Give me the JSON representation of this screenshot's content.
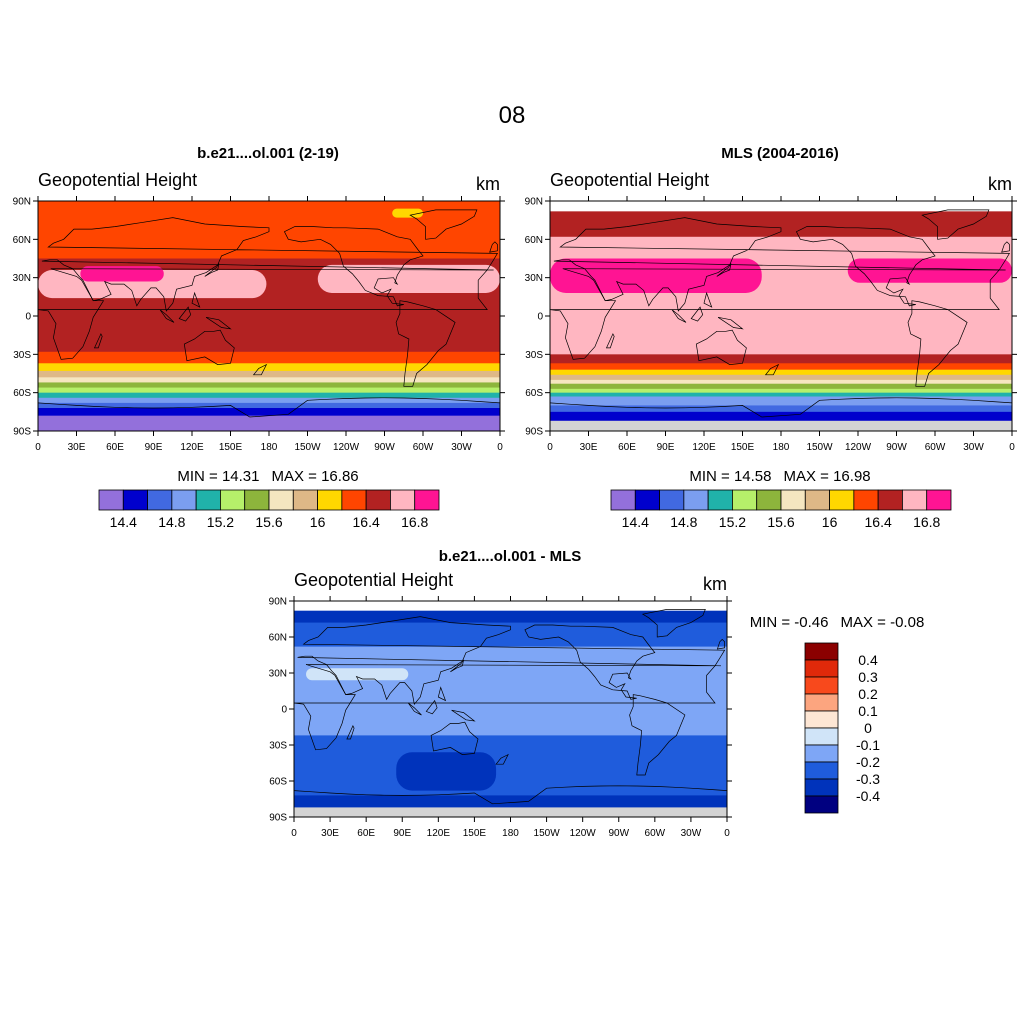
{
  "page_title": "08",
  "chart_data": [
    {
      "type": "heatmap",
      "panel": "model",
      "title": "b.e21....ol.001 (2-19)",
      "left_title": "Geopotential Height",
      "units": "km",
      "x_ticks": [
        "0",
        "30E",
        "60E",
        "90E",
        "120E",
        "150E",
        "180",
        "150W",
        "120W",
        "90W",
        "60W",
        "30W",
        "0"
      ],
      "y_ticks": [
        "90N",
        "60N",
        "30N",
        "0",
        "30S",
        "60S",
        "90S"
      ],
      "min_label": "MIN = ",
      "min_value": "14.31",
      "max_label": "MAX = ",
      "max_value": "16.86",
      "levels": [
        14.4,
        14.6,
        14.8,
        15.0,
        15.2,
        15.4,
        15.6,
        15.8,
        16.0,
        16.2,
        16.4,
        16.6,
        16.8
      ],
      "colorbar_labels": [
        "14.4",
        "14.8",
        "15.2",
        "15.6",
        "16",
        "16.4",
        "16.8"
      ],
      "palette": [
        "#9370db",
        "#0000cd",
        "#4169e1",
        "#7b9ef0",
        "#20b2aa",
        "#b6f06a",
        "#8db53c",
        "#f5e6c0",
        "#deb887",
        "#ffd700",
        "#ff4500",
        "#b22222",
        "#ffb6c1",
        "#ff1493"
      ],
      "bands": [
        {
          "lat_from": 90,
          "lat_to": 45,
          "color_index": 10
        },
        {
          "lat_from": 45,
          "lat_to": 14,
          "color_index": 11
        },
        {
          "lat_from": 14,
          "lat_to": -28,
          "color_index": 11
        },
        {
          "lat_from": -28,
          "lat_to": -37,
          "color_index": 10
        },
        {
          "lat_from": -37,
          "lat_to": -43,
          "color_index": 9
        },
        {
          "lat_from": -43,
          "lat_to": -48,
          "color_index": 8
        },
        {
          "lat_from": -48,
          "lat_to": -52,
          "color_index": 7
        },
        {
          "lat_from": -52,
          "lat_to": -56,
          "color_index": 6
        },
        {
          "lat_from": -56,
          "lat_to": -60,
          "color_index": 5
        },
        {
          "lat_from": -60,
          "lat_to": -64,
          "color_index": 4
        },
        {
          "lat_from": -64,
          "lat_to": -68,
          "color_index": 3
        },
        {
          "lat_from": -68,
          "lat_to": -72,
          "color_index": 2
        },
        {
          "lat_from": -72,
          "lat_to": -78,
          "color_index": 1
        },
        {
          "lat_from": -78,
          "lat_to": -90,
          "color_index": 0
        }
      ],
      "blobs": [
        {
          "lon_from": 0,
          "lon_to": 178,
          "lat_from": 36,
          "lat_to": 14,
          "color_index": 12
        },
        {
          "lon_from": 218,
          "lon_to": 360,
          "lat_from": 40,
          "lat_to": 18,
          "color_index": 12
        },
        {
          "lon_from": 33,
          "lon_to": 98,
          "lat_from": 39,
          "lat_to": 27,
          "color_index": 13
        },
        {
          "lon_from": 276,
          "lon_to": 300,
          "lat_from": 84,
          "lat_to": 77,
          "color_index": 9
        }
      ]
    },
    {
      "type": "heatmap",
      "panel": "observations",
      "title": "MLS (2004-2016)",
      "left_title": "Geopotential Height",
      "units": "km",
      "x_ticks": [
        "0",
        "30E",
        "60E",
        "90E",
        "120E",
        "150E",
        "180",
        "150W",
        "120W",
        "90W",
        "60W",
        "30W",
        "0"
      ],
      "y_ticks": [
        "90N",
        "60N",
        "30N",
        "0",
        "30S",
        "60S",
        "90S"
      ],
      "min_label": "MIN = ",
      "min_value": "14.58",
      "max_label": "MAX = ",
      "max_value": "16.98",
      "levels": [
        14.4,
        14.6,
        14.8,
        15.0,
        15.2,
        15.4,
        15.6,
        15.8,
        16.0,
        16.2,
        16.4,
        16.6,
        16.8
      ],
      "colorbar_labels": [
        "14.4",
        "14.8",
        "15.2",
        "15.6",
        "16",
        "16.4",
        "16.8"
      ],
      "palette": [
        "#9370db",
        "#0000cd",
        "#4169e1",
        "#7b9ef0",
        "#20b2aa",
        "#b6f06a",
        "#8db53c",
        "#f5e6c0",
        "#deb887",
        "#ffd700",
        "#ff4500",
        "#b22222",
        "#ffb6c1",
        "#ff1493"
      ],
      "missing_north_lat": 82,
      "missing_south_lat": -82,
      "bands": [
        {
          "lat_from": 82,
          "lat_to": 62,
          "color_index": 11
        },
        {
          "lat_from": 62,
          "lat_to": -30,
          "color_index": 12
        },
        {
          "lat_from": -30,
          "lat_to": -37,
          "color_index": 11
        },
        {
          "lat_from": -37,
          "lat_to": -42,
          "color_index": 10
        },
        {
          "lat_from": -42,
          "lat_to": -46,
          "color_index": 9
        },
        {
          "lat_from": -46,
          "lat_to": -50,
          "color_index": 8
        },
        {
          "lat_from": -50,
          "lat_to": -53,
          "color_index": 7
        },
        {
          "lat_from": -53,
          "lat_to": -57,
          "color_index": 6
        },
        {
          "lat_from": -57,
          "lat_to": -60,
          "color_index": 5
        },
        {
          "lat_from": -60,
          "lat_to": -63,
          "color_index": 4
        },
        {
          "lat_from": -63,
          "lat_to": -70,
          "color_index": 3
        },
        {
          "lat_from": -70,
          "lat_to": -75,
          "color_index": 2
        },
        {
          "lat_from": -75,
          "lat_to": -82,
          "color_index": 1
        }
      ],
      "blobs": [
        {
          "lon_from": 0,
          "lon_to": 165,
          "lat_from": 45,
          "lat_to": 18,
          "color_index": 13
        },
        {
          "lon_from": 232,
          "lon_to": 360,
          "lat_from": 45,
          "lat_to": 26,
          "color_index": 13
        }
      ]
    },
    {
      "type": "heatmap",
      "panel": "difference",
      "title": "b.e21....ol.001 - MLS",
      "left_title": "Geopotential Height",
      "units": "km",
      "x_ticks": [
        "0",
        "30E",
        "60E",
        "90E",
        "120E",
        "150E",
        "180",
        "150W",
        "120W",
        "90W",
        "60W",
        "30W",
        "0"
      ],
      "y_ticks": [
        "90N",
        "60N",
        "30N",
        "0",
        "30S",
        "60S",
        "90S"
      ],
      "min_label": "MIN = ",
      "min_value": "-0.46",
      "max_label": "MAX = ",
      "max_value": "-0.08",
      "levels": [
        -0.4,
        -0.3,
        -0.2,
        -0.1,
        0,
        0.1,
        0.2,
        0.3,
        0.4
      ],
      "colorbar_labels": [
        "0.4",
        "0.3",
        "0.2",
        "0.1",
        "0",
        "-0.1",
        "-0.2",
        "-0.3",
        "-0.4"
      ],
      "palette": [
        "#000080",
        "#0033bb",
        "#1f5cdc",
        "#7ea6f6",
        "#d0e4f8",
        "#fde6d4",
        "#fca57f",
        "#f8491c",
        "#e0290a",
        "#8b0000"
      ],
      "missing_north_lat": 82,
      "missing_south_lat": -82,
      "bands": [
        {
          "lat_from": 82,
          "lat_to": 72,
          "color_index": 1
        },
        {
          "lat_from": 72,
          "lat_to": 52,
          "color_index": 2
        },
        {
          "lat_from": 52,
          "lat_to": -22,
          "color_index": 3
        },
        {
          "lat_from": -22,
          "lat_to": -72,
          "color_index": 2
        },
        {
          "lat_from": -72,
          "lat_to": -82,
          "color_index": 1
        }
      ],
      "blobs": [
        {
          "lon_from": 10,
          "lon_to": 95,
          "lat_from": 34,
          "lat_to": 24,
          "color_index": 4
        },
        {
          "lon_from": 105,
          "lon_to": 142,
          "lat_from": -41,
          "lat_to": -63,
          "color_index": 0
        },
        {
          "lon_from": 85,
          "lon_to": 168,
          "lat_from": -36,
          "lat_to": -68,
          "color_index": 1
        }
      ]
    }
  ]
}
